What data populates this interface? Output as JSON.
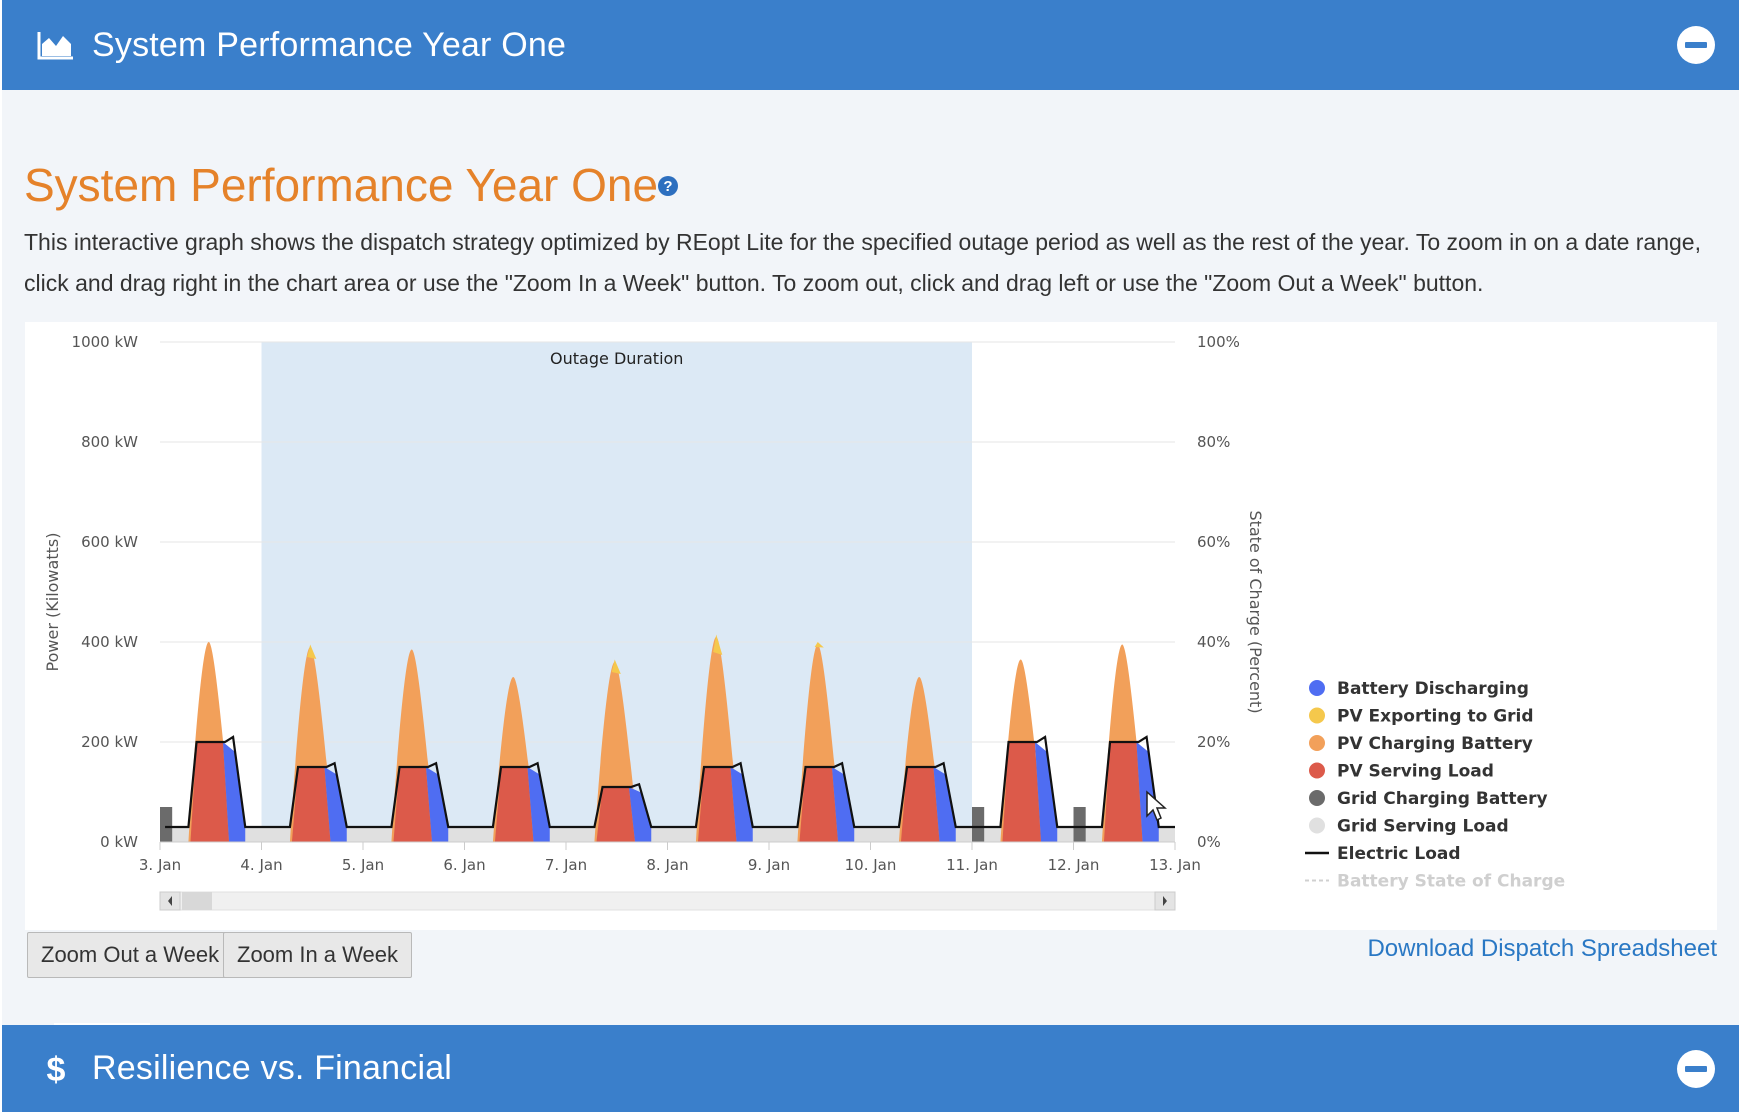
{
  "panel_top": {
    "title": "System Performance Year One",
    "icon": "area-chart-icon",
    "collapse_icon": "minus-circle-icon"
  },
  "section": {
    "heading": "System Performance Year One",
    "help_icon": "question-circle-icon",
    "description": "This interactive graph shows the dispatch strategy optimized by REopt Lite for the specified outage period as well as the rest of the year. To zoom in on a date range, click and drag right in the chart area or use the \"Zoom In a Week\" button. To zoom out, click and drag left or use the \"Zoom Out a Week\" button."
  },
  "buttons": {
    "zoom_out": "Zoom Out a Week",
    "zoom_in": "Zoom In a Week"
  },
  "download": {
    "label": "Download Dispatch Spreadsheet"
  },
  "panel_bottom": {
    "title": "Resilience vs. Financial",
    "icon": "dollar-icon",
    "collapse_icon": "minus-circle-icon"
  },
  "colors": {
    "header_blue": "#3a7fcb",
    "title_orange": "#e5822a",
    "battery_discharging": "#4f6df2",
    "pv_exporting": "#f5c84c",
    "pv_charging": "#f2a05a",
    "pv_serving": "#dc5a4a",
    "grid_charging": "#6b6b6b",
    "grid_serving": "#e0e0e0",
    "electric_load": "#111111",
    "outage_band": "#dce9f5"
  },
  "chart_data": {
    "type": "area",
    "x_tick_labels": [
      "3. Jan",
      "4. Jan",
      "5. Jan",
      "6. Jan",
      "7. Jan",
      "8. Jan",
      "9. Jan",
      "10. Jan",
      "11. Jan",
      "12. Jan",
      "13. Jan"
    ],
    "y_left": {
      "label": "Power (Kilowatts)",
      "ticks": [
        "1000 kW",
        "800 kW",
        "600 kW",
        "400 kW",
        "200 kW",
        "0 kW"
      ],
      "range": [
        0,
        1000
      ]
    },
    "y_right": {
      "label": "State of Charge (Percent)",
      "ticks": [
        "100%",
        "80%",
        "60%",
        "40%",
        "20%",
        "0%"
      ],
      "range": [
        0,
        100
      ]
    },
    "outage": {
      "label": "Outage Duration",
      "start_day": 4,
      "end_day": 11
    },
    "x_range_days": [
      3,
      13
    ],
    "legend": [
      {
        "name": "Battery Discharging",
        "marker": "dot",
        "color": "#4f6df2"
      },
      {
        "name": "PV Exporting to Grid",
        "marker": "dot",
        "color": "#f5c84c"
      },
      {
        "name": "PV Charging Battery",
        "marker": "dot",
        "color": "#f2a05a"
      },
      {
        "name": "PV Serving Load",
        "marker": "dot",
        "color": "#dc5a4a"
      },
      {
        "name": "Grid Charging Battery",
        "marker": "dot",
        "color": "#6b6b6b"
      },
      {
        "name": "Grid Serving Load",
        "marker": "dot",
        "color": "#e0e0e0"
      },
      {
        "name": "Electric Load",
        "marker": "line",
        "color": "#111111"
      },
      {
        "name": "Battery State of Charge",
        "marker": "dashed",
        "color": "#d0d0d0"
      }
    ],
    "legend_position": "right",
    "days": [
      {
        "day": 3,
        "pv_peak": 400,
        "load_peak": 200,
        "export": 0
      },
      {
        "day": 4,
        "pv_peak": 390,
        "load_peak": 150,
        "export": 20
      },
      {
        "day": 5,
        "pv_peak": 385,
        "load_peak": 150,
        "export": 0
      },
      {
        "day": 6,
        "pv_peak": 330,
        "load_peak": 150,
        "export": 0
      },
      {
        "day": 7,
        "pv_peak": 360,
        "load_peak": 110,
        "export": 20
      },
      {
        "day": 8,
        "pv_peak": 410,
        "load_peak": 150,
        "export": 30
      },
      {
        "day": 9,
        "pv_peak": 395,
        "load_peak": 150,
        "export": 5
      },
      {
        "day": 10,
        "pv_peak": 330,
        "load_peak": 150,
        "export": 0
      },
      {
        "day": 11,
        "pv_peak": 365,
        "load_peak": 200,
        "export": 0
      },
      {
        "day": 12,
        "pv_peak": 395,
        "load_peak": 200,
        "export": 0
      }
    ],
    "night_load_kw": 30,
    "grid_charging_kw": 70
  }
}
